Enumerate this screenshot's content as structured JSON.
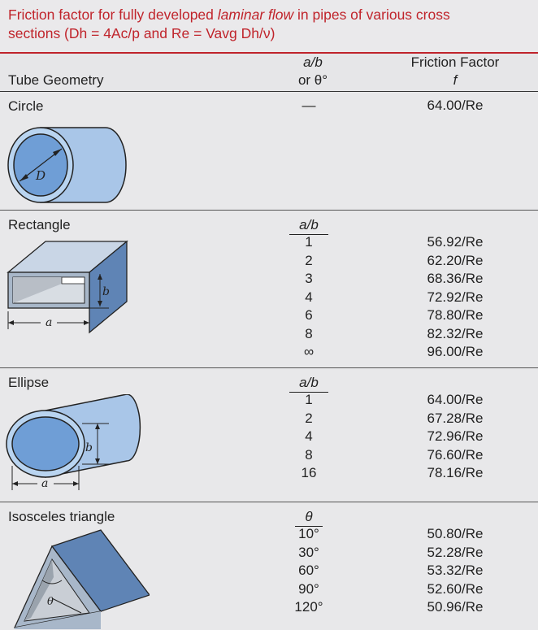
{
  "caption": {
    "line1_prefix": "Friction factor for fully developed ",
    "line1_italic": "laminar flow",
    "line1_suffix": " in pipes of various cross",
    "line2": "sections (Dh = 4Ac/p and Re = Vavg Dh/ν)"
  },
  "header": {
    "geometry": "Tube Geometry",
    "ab_line1": "a/b",
    "ab_line2": "or θ°",
    "ff_line1": "Friction Factor",
    "ff_line2": "f"
  },
  "sections": [
    {
      "name": "Circle",
      "ab_header": "",
      "ab_values": [
        "—"
      ],
      "f_values": [
        "64.00/Re"
      ],
      "figure_labels": [
        "D"
      ]
    },
    {
      "name": "Rectangle",
      "ab_header": "a/b",
      "ab_values": [
        "1",
        "2",
        "3",
        "4",
        "6",
        "8",
        "∞"
      ],
      "f_values": [
        "56.92/Re",
        "62.20/Re",
        "68.36/Re",
        "72.92/Re",
        "78.80/Re",
        "82.32/Re",
        "96.00/Re"
      ],
      "figure_labels": [
        "b",
        "a"
      ]
    },
    {
      "name": "Ellipse",
      "ab_header": "a/b",
      "ab_values": [
        "1",
        "2",
        "4",
        "8",
        "16"
      ],
      "f_values": [
        "64.00/Re",
        "67.28/Re",
        "72.96/Re",
        "76.60/Re",
        "78.16/Re"
      ],
      "figure_labels": [
        "b",
        "a"
      ]
    },
    {
      "name": "Isosceles triangle",
      "ab_header": "θ",
      "ab_values": [
        "10°",
        "30°",
        "60°",
        "90°",
        "120°"
      ],
      "f_values": [
        "50.80/Re",
        "52.28/Re",
        "53.32/Re",
        "52.60/Re",
        "50.96/Re"
      ],
      "figure_labels": [
        "θ"
      ]
    }
  ]
}
